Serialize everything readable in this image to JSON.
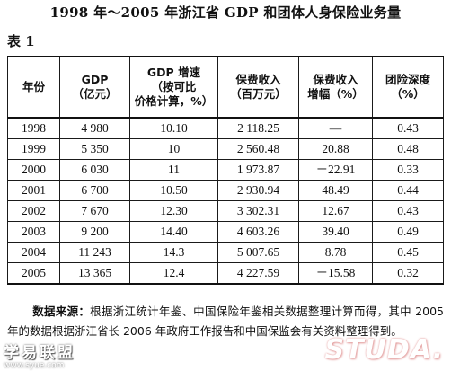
{
  "title": "1998 年～2005 年浙江省 GDP 和团体人身保险业务量",
  "table_label": "表 1",
  "table": {
    "headers": [
      [
        "年份"
      ],
      [
        "GDP",
        "（亿元）"
      ],
      [
        "GDP 增速",
        "（按可比",
        "价格计算，%）"
      ],
      [
        "保费收入",
        "（百万元）"
      ],
      [
        "保费收入",
        "增幅（%）"
      ],
      [
        "团险深度",
        "（%）"
      ]
    ],
    "rows": [
      [
        "1998",
        "4 980",
        "10.10",
        "2 118.25",
        "—",
        "0.43"
      ],
      [
        "1999",
        "5 350",
        "10",
        "2 560.48",
        "20.88",
        "0.48"
      ],
      [
        "2000",
        "6 030",
        "11",
        "1 973.87",
        "－22.91",
        "0.33"
      ],
      [
        "2001",
        "6 700",
        "10.50",
        "2 930.94",
        "48.49",
        "0.44"
      ],
      [
        "2002",
        "7 670",
        "12.30",
        "3 302.31",
        "12.67",
        "0.43"
      ],
      [
        "2003",
        "9 200",
        "14.40",
        "4 603.26",
        "39.40",
        "0.49"
      ],
      [
        "2004",
        "11 243",
        "14.3",
        "5 007.65",
        "8.78",
        "0.45"
      ],
      [
        "2005",
        "13 365",
        "12.4",
        "4 227.59",
        "－15.58",
        "0.32"
      ]
    ]
  },
  "footnote": {
    "label": "数据来源：",
    "text": "根据浙江统计年鉴、中国保险年鉴相关数据整理计算而得，其中 2005 年的数据根据浙江省长 2006 年政府工作报告和中国保监会有关资料整理得到。"
  },
  "watermarks": {
    "left": "学易联盟",
    "left_sub": "www.syue.com",
    "right": "STUDA."
  }
}
